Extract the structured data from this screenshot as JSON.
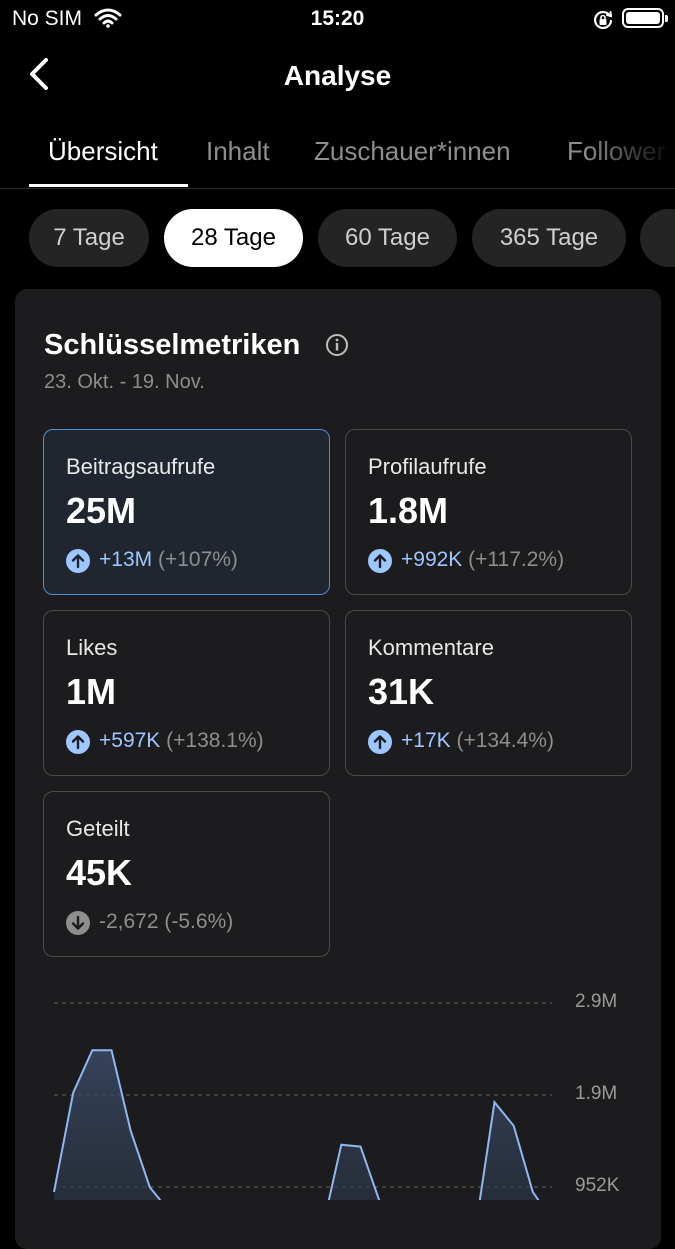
{
  "status": {
    "carrier": "No SIM",
    "time": "15:20"
  },
  "header": {
    "title": "Analyse"
  },
  "tabs": [
    {
      "label": "Übersicht"
    },
    {
      "label": "Inhalt"
    },
    {
      "label": "Zuschauer*innen"
    },
    {
      "label": "Follower"
    }
  ],
  "ranges": [
    {
      "label": "7 Tage"
    },
    {
      "label": "28 Tage"
    },
    {
      "label": "60 Tage"
    },
    {
      "label": "365 Tage"
    }
  ],
  "metrics_section": {
    "title": "Schlüsselmetriken",
    "date_range": "23. Okt. - 19. Nov.",
    "metrics": [
      {
        "label": "Beitragsaufrufe",
        "value": "25M",
        "delta": "+13M",
        "pct": "(+107%)",
        "trend": "up"
      },
      {
        "label": "Profilaufrufe",
        "value": "1.8M",
        "delta": "+992K",
        "pct": "(+117.2%)",
        "trend": "up"
      },
      {
        "label": "Likes",
        "value": "1M",
        "delta": "+597K",
        "pct": "(+138.1%)",
        "trend": "up"
      },
      {
        "label": "Kommentare",
        "value": "31K",
        "delta": "+17K",
        "pct": "(+134.4%)",
        "trend": "up"
      },
      {
        "label": "Geteilt",
        "value": "45K",
        "delta": "-2,672",
        "pct": "(-5.6%)",
        "trend": "down"
      }
    ]
  },
  "colors": {
    "accent": "#9ec7ff",
    "active_border": "#4f8fda",
    "card_bg": "#1c1c1e"
  },
  "chart_data": {
    "type": "area",
    "y_tick_labels": [
      "2.9M",
      "1.9M",
      "952K"
    ],
    "ylim": [
      0,
      2900000
    ],
    "grid": true,
    "x": [
      1,
      2,
      3,
      4,
      5,
      6,
      7,
      8,
      9,
      10,
      11,
      12,
      13,
      14,
      15,
      16,
      17,
      18,
      19,
      20,
      21,
      22,
      23,
      24,
      25,
      26,
      27
    ],
    "series": [
      {
        "values": [
          900000,
          1950000,
          2400000,
          2400000,
          1550000,
          950000,
          700000,
          600000,
          560000,
          540000,
          530000,
          520000,
          520000,
          520000,
          500000,
          1400000,
          1380000,
          800000,
          600000,
          550000,
          520000,
          500000,
          500000,
          1850000,
          1600000,
          900000,
          600000
        ]
      }
    ]
  }
}
